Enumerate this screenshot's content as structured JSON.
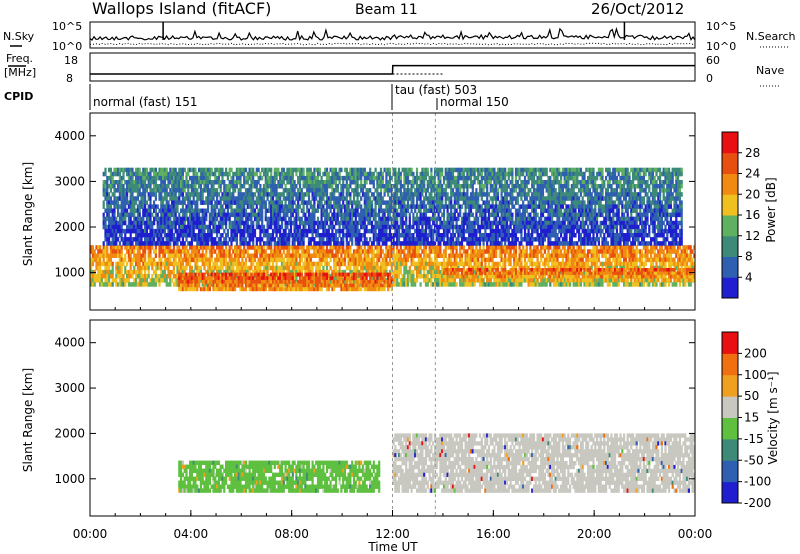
{
  "header": {
    "site": "Wallops Island (fitACF)",
    "beam": "Beam 11",
    "date": "26/Oct/2012"
  },
  "noise_panel": {
    "left_label": "N.Sky",
    "right_label": "N.Search",
    "left_ticks": [
      "10^5",
      "10^0"
    ],
    "right_ticks": [
      "10^5",
      "10^0"
    ]
  },
  "freq_panel": {
    "left_label_1": "Freq.",
    "left_label_2": "[MHz]",
    "right_label": "Nave",
    "left_ticks": [
      "18",
      "8"
    ],
    "right_ticks": [
      "60",
      "0"
    ]
  },
  "cpid_panel": {
    "label": "CPID",
    "modes": [
      {
        "text": "normal (fast) 151"
      },
      {
        "text": "tau (fast) 503"
      },
      {
        "text": "normal 150"
      }
    ]
  },
  "power_panel": {
    "ylabel": "Slant Range [km]",
    "y_ticks": [
      "1000",
      "2000",
      "3000",
      "4000"
    ],
    "colorbar_label": "Power [dB]",
    "colorbar_ticks": [
      "4",
      "8",
      "12",
      "16",
      "20",
      "24",
      "28"
    ],
    "colors": [
      "#1f1fd0",
      "#2f5fb0",
      "#3d8a78",
      "#5fb060",
      "#f0c020",
      "#f08a10",
      "#e85010",
      "#e81010"
    ]
  },
  "velocity_panel": {
    "ylabel": "Slant Range [km]",
    "y_ticks": [
      "1000",
      "2000",
      "3000",
      "4000"
    ],
    "colorbar_label": "Velocity [m s⁻¹]",
    "colorbar_ticks": [
      "200",
      "100",
      "50",
      "15",
      "-15",
      "-50",
      "-100",
      "-200"
    ],
    "colors": [
      "#1f1fd0",
      "#2f5fb0",
      "#3d8a78",
      "#5fc040",
      "#c8c8c0",
      "#f0a020",
      "#f07010",
      "#e81010"
    ]
  },
  "x_axis": {
    "label": "Time UT",
    "ticks": [
      "00:00",
      "04:00",
      "08:00",
      "12:00",
      "16:00",
      "20:00",
      "00:00"
    ]
  },
  "chart_data": [
    {
      "type": "heatmap",
      "title": "Power",
      "xlabel": "Time UT",
      "ylabel": "Slant Range [km]",
      "xlim": [
        0,
        24
      ],
      "ylim": [
        180,
        4500
      ],
      "colorbar_range_db": [
        0,
        30
      ],
      "bands": [
        {
          "name": "near range ionospheric band",
          "t_start": 0.0,
          "t_end": 24.0,
          "range_km": [
            700,
            1600
          ],
          "power_db": 22
        },
        {
          "name": "strong morning arc",
          "t_start": 3.5,
          "t_end": 12.0,
          "range_km": [
            600,
            1000
          ],
          "power_db": 26
        },
        {
          "name": "afternoon band",
          "t_start": 14.0,
          "t_end": 24.0,
          "range_km": [
            800,
            1100
          ],
          "power_db": 24
        },
        {
          "name": "far range scatter",
          "t_start": 0.5,
          "t_end": 23.5,
          "range_km": [
            1600,
            3300
          ],
          "power_db": 10
        }
      ]
    },
    {
      "type": "heatmap",
      "title": "Velocity",
      "xlabel": "Time UT",
      "ylabel": "Slant Range [km]",
      "xlim": [
        0,
        24
      ],
      "ylim": [
        180,
        4500
      ],
      "colorbar_range": [
        -200,
        200
      ],
      "bands": [
        {
          "name": "morning positive velocity region",
          "t_start": 3.5,
          "t_end": 11.5,
          "range_km": [
            700,
            1400
          ],
          "velocity": 40
        },
        {
          "name": "afternoon ground scatter",
          "t_start": 12.0,
          "t_end": 24.0,
          "range_km": [
            700,
            2000
          ],
          "velocity": 0
        }
      ]
    },
    {
      "type": "line",
      "title": "Freq. [MHz]",
      "xlim": [
        0,
        24
      ],
      "ylim": [
        8,
        18
      ],
      "x": [
        0.0,
        12.0,
        12.01,
        24.0
      ],
      "y": [
        10.5,
        10.5,
        13.5,
        13.5
      ]
    }
  ]
}
